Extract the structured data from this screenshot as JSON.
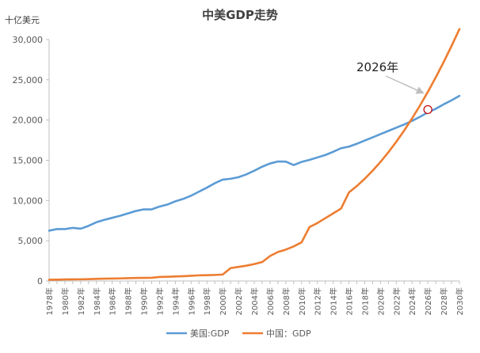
{
  "chart_data": {
    "type": "line",
    "title": "中美GDP走势",
    "unit_label": "十亿美元",
    "ylim": [
      0,
      30000
    ],
    "y_ticks": [
      0,
      5000,
      10000,
      15000,
      20000,
      25000,
      30000
    ],
    "y_tick_labels": [
      "0",
      "5,000",
      "10,000",
      "15,000",
      "20,000",
      "25,000",
      "30,000"
    ],
    "x_tick_labels": [
      "1978年",
      "1980年",
      "1982年",
      "1984年",
      "1986年",
      "1988年",
      "1990年",
      "1992年",
      "1994年",
      "1996年",
      "1998年",
      "2000年",
      "2002年",
      "2004年",
      "2006年",
      "2008年",
      "2010年",
      "2012年",
      "2014年",
      "2016年",
      "2018年",
      "2020年",
      "2022年",
      "2024年",
      "2026年",
      "2028年",
      "2030年"
    ],
    "x": [
      1978,
      1979,
      1980,
      1981,
      1982,
      1983,
      1984,
      1985,
      1986,
      1987,
      1988,
      1989,
      1990,
      1991,
      1992,
      1993,
      1994,
      1995,
      1996,
      1997,
      1998,
      1999,
      2000,
      2001,
      2002,
      2003,
      2004,
      2005,
      2006,
      2007,
      2008,
      2009,
      2010,
      2011,
      2012,
      2013,
      2014,
      2015,
      2016,
      2017,
      2018,
      2019,
      2020,
      2021,
      2022,
      2023,
      2024,
      2025,
      2026,
      2027,
      2028,
      2029,
      2030
    ],
    "series": [
      {
        "name": "美国:GDP",
        "color": "#5B9BD5",
        "values": [
          6250,
          6450,
          6450,
          6600,
          6500,
          6850,
          7300,
          7600,
          7850,
          8100,
          8400,
          8700,
          8900,
          8900,
          9250,
          9500,
          9900,
          10200,
          10600,
          11100,
          11600,
          12150,
          12600,
          12700,
          12900,
          13250,
          13700,
          14200,
          14600,
          14850,
          14830,
          14400,
          14800,
          15050,
          15350,
          15650,
          16050,
          16500,
          16700,
          17050,
          17450,
          17850,
          18250,
          18650,
          19050,
          19450,
          19900,
          20400,
          20950,
          21400,
          21950,
          22450,
          23000
        ]
      },
      {
        "name": "中国：GDP",
        "color": "#ED7D31",
        "values": [
          150,
          170,
          190,
          200,
          210,
          230,
          260,
          290,
          300,
          320,
          350,
          380,
          390,
          400,
          500,
          520,
          560,
          600,
          650,
          700,
          720,
          750,
          800,
          1600,
          1750,
          1900,
          2100,
          2350,
          3100,
          3600,
          3900,
          4300,
          4800,
          6700,
          7200,
          7800,
          8400,
          9000,
          11000,
          11800,
          12700,
          13700,
          14800,
          16000,
          17300,
          18700,
          20200,
          21800,
          23500,
          25300,
          27200,
          29200,
          31300
        ]
      }
    ],
    "annotation": {
      "label": "2026年",
      "x": 2026,
      "y": 21300
    }
  }
}
